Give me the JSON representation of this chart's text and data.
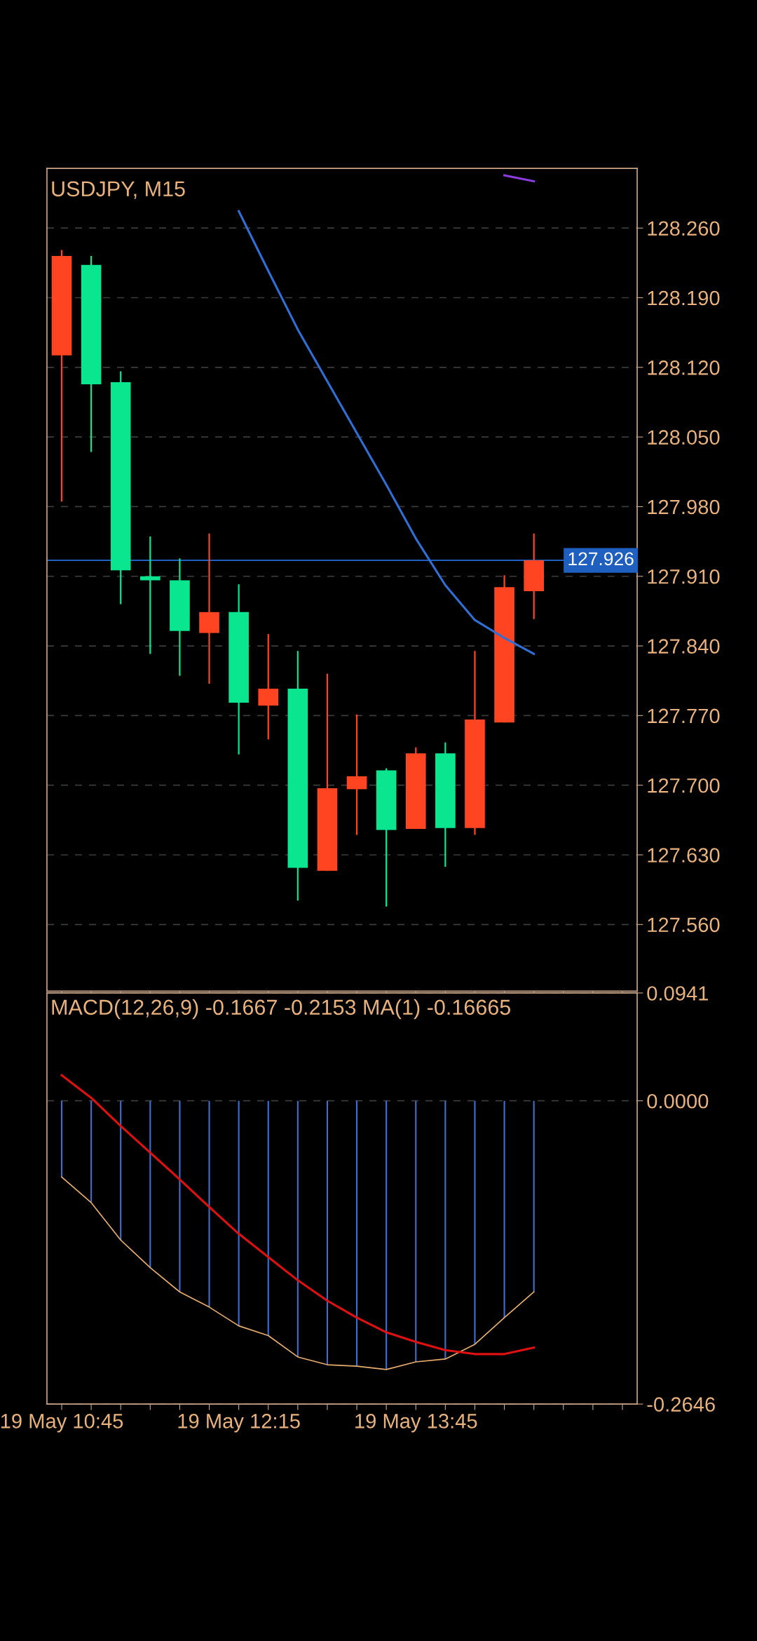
{
  "chart_data": [
    {
      "type": "candlestick",
      "title": "USDJPY, M15",
      "categories": [
        null,
        null,
        null,
        null,
        null,
        null,
        null,
        null,
        null,
        null,
        null,
        null,
        null,
        null,
        null,
        null,
        null,
        null,
        null,
        null
      ],
      "ohlc": [
        [
          128.132,
          128.238,
          127.985,
          128.232
        ],
        [
          128.223,
          128.232,
          128.035,
          128.103
        ],
        [
          128.105,
          128.116,
          127.882,
          127.916
        ],
        [
          127.91,
          127.95,
          127.832,
          127.906
        ],
        [
          127.906,
          127.928,
          127.81,
          127.855
        ],
        [
          127.853,
          127.953,
          127.802,
          127.874
        ],
        [
          127.874,
          127.902,
          127.731,
          127.783
        ],
        [
          127.78,
          127.852,
          127.746,
          127.797
        ],
        [
          127.797,
          127.835,
          127.584,
          127.617
        ],
        [
          127.614,
          127.812,
          127.614,
          127.697
        ],
        [
          127.696,
          127.771,
          127.65,
          127.709
        ],
        [
          127.715,
          127.717,
          127.578,
          127.655
        ],
        [
          127.656,
          127.738,
          127.656,
          127.732
        ],
        [
          127.732,
          127.743,
          127.618,
          127.657
        ],
        [
          127.657,
          127.835,
          127.65,
          127.766
        ],
        [
          127.763,
          127.911,
          127.763,
          127.899
        ],
        [
          127.895,
          127.953,
          127.867,
          127.926
        ],
        null,
        null,
        null
      ],
      "colors": [
        "#ff4422",
        "#0ae68f",
        "#0ae68f",
        "#0ae68f",
        "#0ae68f",
        "#ff4422",
        "#0ae68f",
        "#ff4422",
        "#0ae68f",
        "#ff4422",
        "#ff4422",
        "#0ae68f",
        "#ff4422",
        "#0ae68f",
        "#ff4422",
        "#ff4422",
        "#ff4422",
        null,
        null,
        null
      ],
      "series": [
        {
          "type": "line",
          "color": "#2f6fd6",
          "values": [
            null,
            null,
            null,
            null,
            null,
            null,
            128.277,
            128.217,
            128.158,
            128.106,
            128.054,
            128.002,
            127.948,
            127.901,
            127.866,
            127.848,
            127.832,
            null,
            null,
            null
          ]
        },
        {
          "type": "line",
          "color": "#8a3ddc",
          "values": [
            null,
            null,
            null,
            null,
            null,
            null,
            null,
            null,
            null,
            null,
            null,
            null,
            null,
            null,
            null,
            128.313,
            128.307,
            null,
            null,
            null
          ]
        }
      ],
      "ref_lines": [
        {
          "axis": "y",
          "value": 127.926,
          "label": "127.926",
          "color": "#1f5fbf"
        }
      ],
      "ylim": [
        127.493,
        128.32
      ],
      "yticks": [
        {
          "value": 127.56,
          "label": "127.560"
        },
        {
          "value": 127.63,
          "label": "127.630"
        },
        {
          "value": 127.7,
          "label": "127.700"
        },
        {
          "value": 127.77,
          "label": "127.770"
        },
        {
          "value": 127.84,
          "label": "127.840"
        },
        {
          "value": 127.91,
          "label": "127.910"
        },
        {
          "value": 127.98,
          "label": "127.980"
        },
        {
          "value": 128.05,
          "label": "128.050"
        },
        {
          "value": 128.12,
          "label": "128.120"
        },
        {
          "value": 128.19,
          "label": "128.190"
        },
        {
          "value": 128.26,
          "label": "128.260"
        }
      ],
      "grid": "y",
      "tick_labels": "y"
    },
    {
      "type": "bar",
      "title": "MACD(12,26,9) -0.1667 -0.2153 MA(1) -0.16665",
      "categories": [
        "19 May 10:45",
        null,
        null,
        null,
        null,
        null,
        "19 May 12:15",
        null,
        null,
        null,
        null,
        null,
        "19 May 13:45",
        null,
        null,
        null,
        null,
        null,
        null,
        null
      ],
      "series": [
        {
          "type": "bar",
          "color": "#3d6fd0",
          "values": [
            -0.0665,
            -0.0889,
            -0.1215,
            -0.1456,
            -0.1668,
            -0.18,
            -0.1964,
            -0.2049,
            -0.2235,
            -0.2303,
            -0.2316,
            -0.2345,
            -0.2278,
            -0.2253,
            -0.2125,
            -0.1892,
            -0.1667,
            null,
            null,
            null
          ]
        },
        {
          "type": "line",
          "color": "#e8ad6c",
          "values": [
            -0.0665,
            -0.0889,
            -0.1215,
            -0.1456,
            -0.1668,
            -0.18,
            -0.1964,
            -0.2049,
            -0.2235,
            -0.2303,
            -0.2316,
            -0.2345,
            -0.2278,
            -0.2253,
            -0.2125,
            -0.1892,
            -0.1667,
            null,
            null,
            null
          ]
        },
        {
          "type": "line",
          "color": "#e01010",
          "values": [
            0.0224,
            0.0026,
            -0.022,
            -0.0453,
            -0.0686,
            -0.0927,
            -0.116,
            -0.1363,
            -0.1566,
            -0.1744,
            -0.1892,
            -0.202,
            -0.2104,
            -0.2176,
            -0.221,
            -0.221,
            -0.2153,
            null,
            null,
            null
          ]
        }
      ],
      "ylim": [
        -0.2646,
        0.0941
      ],
      "yticks": [
        {
          "value": -0.2646,
          "label": "-0.2646"
        },
        {
          "value": 0,
          "label": "0.0000"
        },
        {
          "value": 0.0941,
          "label": "0.0941"
        }
      ],
      "grid": "y"
    }
  ]
}
